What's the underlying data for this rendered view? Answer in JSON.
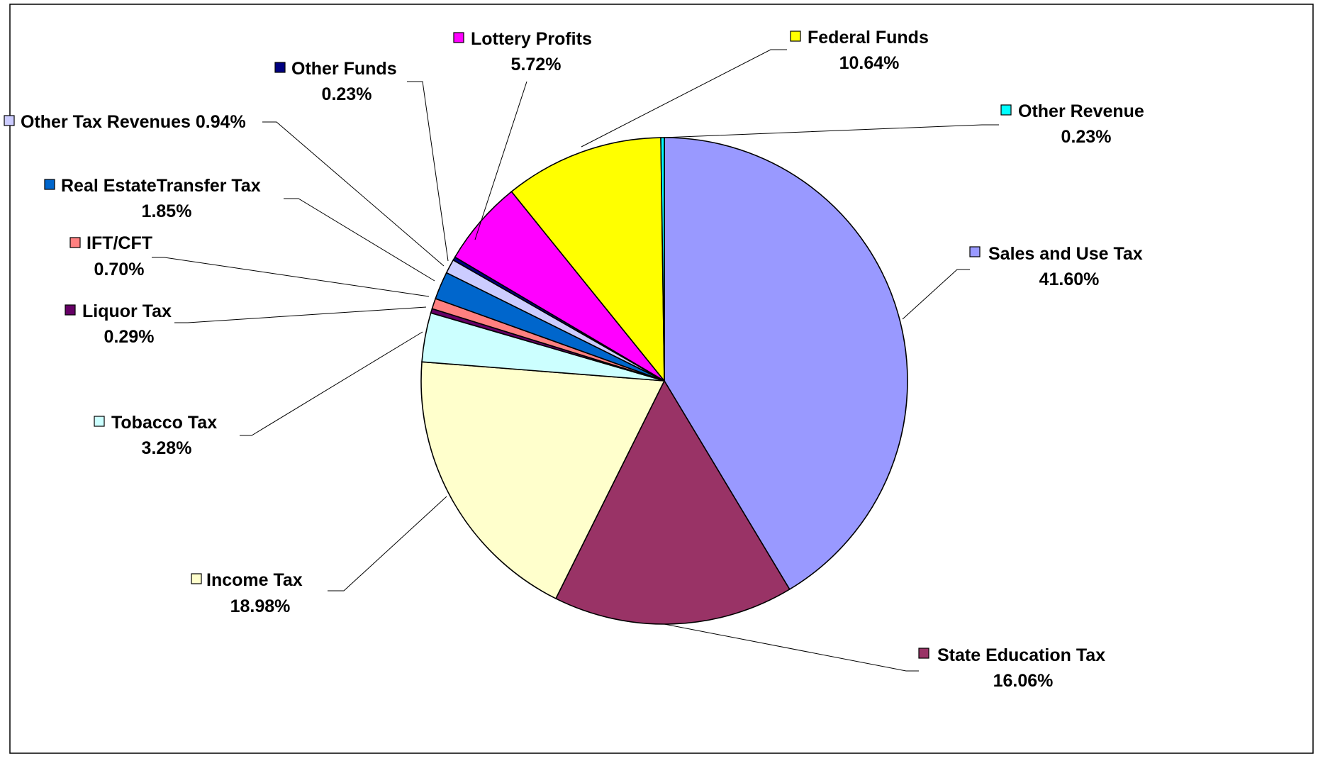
{
  "chart_data": {
    "type": "pie",
    "title": "",
    "slices": [
      {
        "name": "Sales and Use Tax",
        "label": "Sales and Use Tax",
        "percent_label": "41.60%",
        "value": 41.6,
        "color": "#9999FF"
      },
      {
        "name": "State Education Tax",
        "label": "State Education Tax",
        "percent_label": "16.06%",
        "value": 16.06,
        "color": "#993366"
      },
      {
        "name": "Income Tax",
        "label": "Income Tax",
        "percent_label": "18.98%",
        "value": 18.98,
        "color": "#FFFFCC"
      },
      {
        "name": "Tobacco Tax",
        "label": "Tobacco Tax",
        "percent_label": "3.28%",
        "value": 3.28,
        "color": "#CCFFFF"
      },
      {
        "name": "Liquor Tax",
        "label": "Liquor Tax",
        "percent_label": "0.29%",
        "value": 0.29,
        "color": "#660066"
      },
      {
        "name": "IFT/CFT",
        "label": "IFT/CFT",
        "percent_label": "0.70%",
        "value": 0.7,
        "color": "#FF8080"
      },
      {
        "name": "Real Estate Transfer Tax",
        "label": "Real EstateTransfer Tax",
        "percent_label": "1.85%",
        "value": 1.85,
        "color": "#0066CC"
      },
      {
        "name": "Other Tax Revenues",
        "label": "Other Tax Revenues 0.94%",
        "percent_label": "",
        "value": 0.94,
        "color": "#CCCCFF"
      },
      {
        "name": "Other Funds",
        "label": "Other Funds",
        "percent_label": "0.23%",
        "value": 0.23,
        "color": "#000080"
      },
      {
        "name": "Lottery Profits",
        "label": "Lottery Profits",
        "percent_label": "5.72%",
        "value": 5.72,
        "color": "#FF00FF"
      },
      {
        "name": "Federal Funds",
        "label": "Federal Funds",
        "percent_label": "10.64%",
        "value": 10.64,
        "color": "#FFFF00"
      },
      {
        "name": "Other Revenue",
        "label": "Other Revenue",
        "percent_label": "0.23%",
        "value": 0.23,
        "color": "#00FFFF"
      }
    ],
    "legend": "none (leader-line labels around pie)"
  }
}
